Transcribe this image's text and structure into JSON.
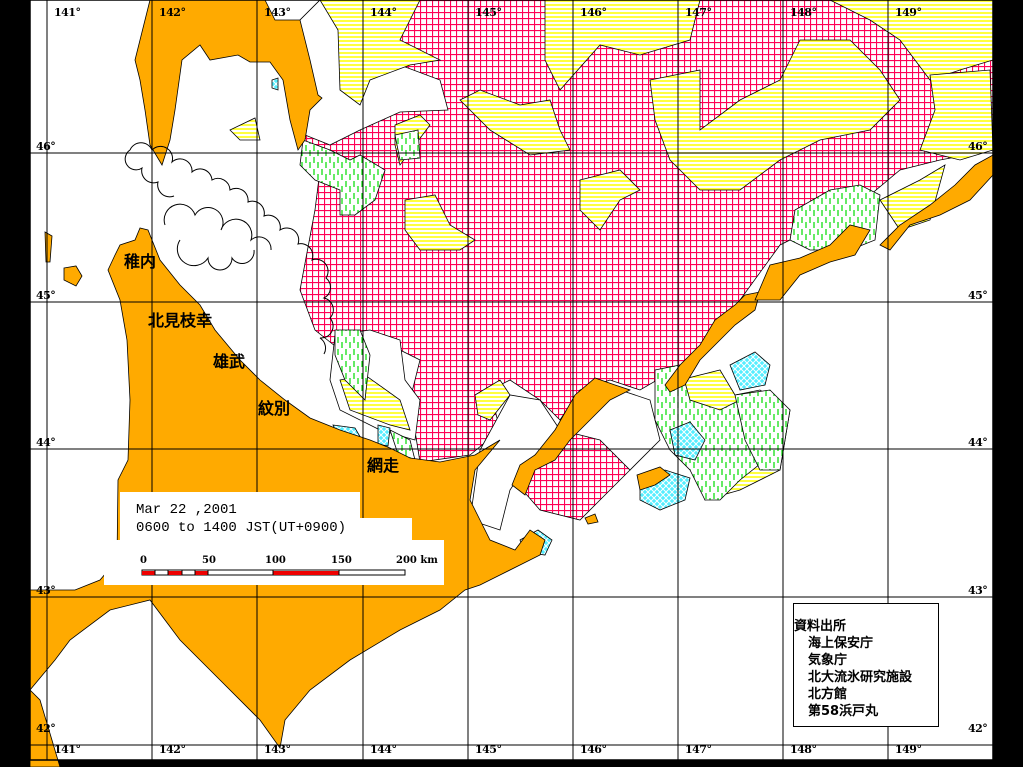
{
  "map": {
    "longitude_labels": [
      "141°",
      "142°",
      "143°",
      "144°",
      "145°",
      "146°",
      "147°",
      "148°",
      "149°"
    ],
    "latitude_labels": [
      "46°",
      "45°",
      "44°",
      "43°",
      "42°"
    ],
    "place_names": [
      "稚内",
      "北見枝幸",
      "雄武",
      "紋別",
      "網走"
    ],
    "colors": {
      "land": "#FFAA00",
      "ice_dense_grid": "#FF0055",
      "ice_yellow_lines": "#FFFF00",
      "ice_green_dashes": "#00DD00",
      "ice_cyan_checker": "#55EEFF",
      "sea": "#FFFFFF",
      "border": "#000000"
    }
  },
  "legend": {
    "date": "Mar 22 ,2001",
    "time_range": "0600 to 1400 JST(UT+0900)",
    "scale_labels": [
      "0",
      "50",
      "100",
      "150",
      "200 km"
    ]
  },
  "sources": {
    "title": "資料出所",
    "items": [
      "海上保安庁",
      "気象庁",
      "北大流氷研究施設",
      "北方館",
      "第58浜戸丸"
    ]
  }
}
